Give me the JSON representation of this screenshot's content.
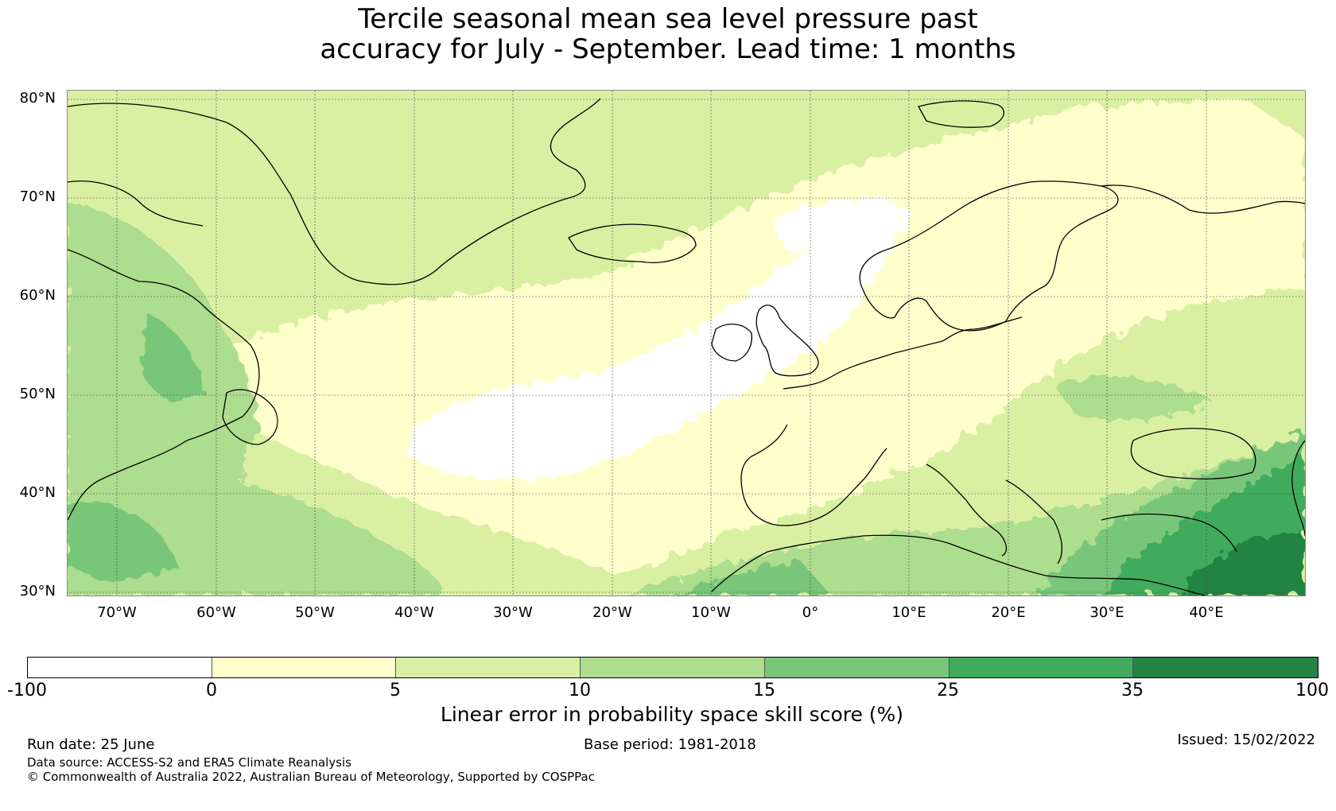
{
  "title": {
    "line1": "Tercile seasonal mean sea level pressure past",
    "line2": "accuracy for July - September. Lead time: 1 months"
  },
  "map": {
    "lat_labels": [
      "80°N",
      "70°N",
      "60°N",
      "50°N",
      "40°N",
      "30°N"
    ],
    "lon_labels": [
      "70°W",
      "60°W",
      "50°W",
      "40°W",
      "30°W",
      "20°W",
      "10°W",
      "0°",
      "10°E",
      "20°E",
      "30°E",
      "40°E"
    ],
    "lat_range": [
      30,
      81
    ],
    "lon_range": [
      -75,
      50
    ],
    "land_color": "#000000"
  },
  "colorbar": {
    "title": "Linear error in probability space skill score (%)",
    "boundaries": [
      "-100",
      "0",
      "5",
      "10",
      "15",
      "25",
      "35",
      "100"
    ],
    "colors": [
      "#ffffff",
      "#ffffcc",
      "#d9f0a3",
      "#addd8e",
      "#78c679",
      "#41ab5d",
      "#238443"
    ]
  },
  "footer": {
    "run_date": "Run date: 25 June",
    "base_period": "Base period: 1981-2018",
    "issued": "Issued: 15/02/2022",
    "data_source": "Data source: ACCESS-S2 and ERA5 Climate Reanalysis",
    "copyright": "© Commonwealth of Australia 2022, Australian Bureau of Meteorology, Supported by COSPPac"
  }
}
